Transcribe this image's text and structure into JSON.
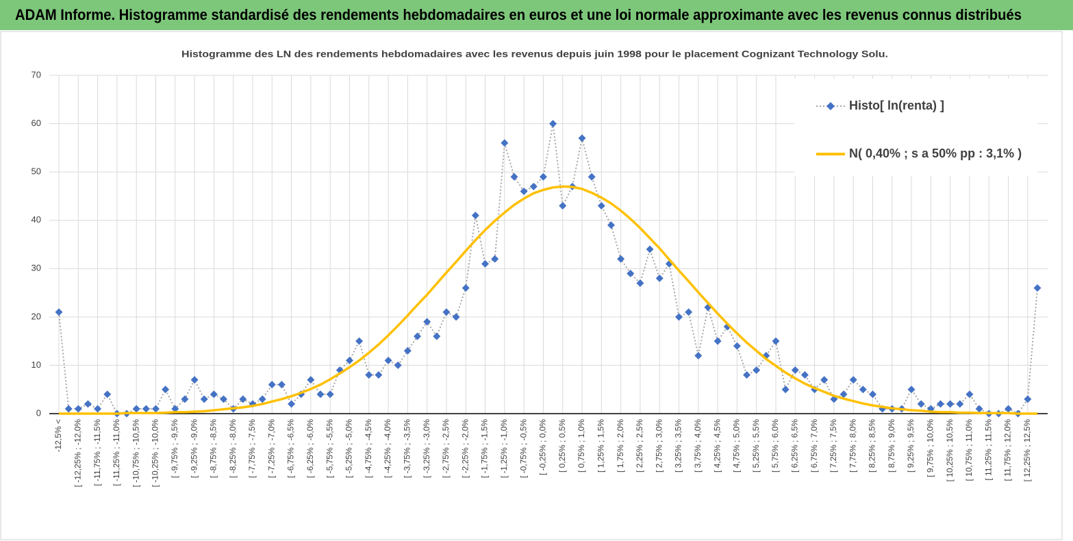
{
  "header": {
    "title": "ADAM Informe. Histogramme standardisé des rendements hebdomadaires en euros et une loi normale approximante avec les revenus connus distribués"
  },
  "chart_data": {
    "type": "line",
    "title": "Histogramme des LN des rendements hebdomadaires avec les revenus depuis juin 1998 pour le placement Cognizant Technology Solu.",
    "categories": [
      "-12,5% <",
      null,
      "[ -12,25% ; -12,0%",
      null,
      "[ -11,75% ; -11,5%",
      null,
      "[ -11,25% ; -11,0%",
      null,
      "[ -10,75% ; -10,5%",
      null,
      "[ -10,25% ; -10,0%",
      null,
      "[ -9,75% ; -9,5%",
      null,
      "[ -9,25% ; -9,0%",
      null,
      "[ -8,75% ; -8,5%",
      null,
      "[ -8,25% ; -8,0%",
      null,
      "[ -7,75% ; -7,5%",
      null,
      "[ -7,25% ; -7,0%",
      null,
      "[ -6,75% ; -6,5%",
      null,
      "[ -6,25% ; -6,0%",
      null,
      "[ -5,75% ; -5,5%",
      null,
      "[ -5,25% ; -5,0%",
      null,
      "[ -4,75% ; -4,5%",
      null,
      "[ -4,25% ; -4,0%",
      null,
      "[ -3,75% ; -3,5%",
      null,
      "[ -3,25% ; -3,0%",
      null,
      "[ -2,75% ; -2,5%",
      null,
      "[ -2,25% ; -2,0%",
      null,
      "[ -1,75% ; -1,5%",
      null,
      "[ -1,25% ; -1,0%",
      null,
      "[ -0,75% ; -0,5%",
      null,
      "[ -0,25% ; 0,0%",
      null,
      "[ 0,25% ; 0,5%",
      null,
      "[ 0,75% ; 1,0%",
      null,
      "[ 1,25% ; 1,5%",
      null,
      "[ 1,75% ; 2,0%",
      null,
      "[ 2,25% ; 2,5%",
      null,
      "[ 2,75% ; 3,0%",
      null,
      "[ 3,25% ; 3,5%",
      null,
      "[ 3,75% ; 4,0%",
      null,
      "[ 4,25% ; 4,5%",
      null,
      "[ 4,75% ; 5,0%",
      null,
      "[ 5,25% ; 5,5%",
      null,
      "[ 5,75% ; 6,0%",
      null,
      "[ 6,25% ; 6,5%",
      null,
      "[ 6,75% ; 7,0%",
      null,
      "[ 7,25% ; 7,5%",
      null,
      "[ 7,75% ; 8,0%",
      null,
      "[ 8,25% ; 8,5%",
      null,
      "[ 8,75% ; 9,0%",
      null,
      "[ 9,25% ; 9,5%",
      null,
      "[ 9,75% ; 10,0%",
      null,
      "[ 10,25% ; 10,5%",
      null,
      "[ 10,75% ; 11,0%",
      null,
      "[ 11,25% ; 11,5%",
      null,
      "[ 11,75% ; 12,0%",
      null,
      "[ 12,25% ; 12,5%",
      null
    ],
    "series": [
      {
        "name": "Histo[ ln(renta) ]",
        "color": "#4472c4",
        "line_color": "#a5a5a5",
        "values": [
          21,
          1,
          1,
          2,
          1,
          4,
          0,
          0,
          1,
          1,
          1,
          5,
          1,
          3,
          7,
          3,
          4,
          3,
          1,
          3,
          2,
          3,
          6,
          6,
          2,
          4,
          7,
          4,
          4,
          9,
          11,
          15,
          8,
          8,
          11,
          10,
          13,
          16,
          19,
          16,
          21,
          20,
          26,
          41,
          31,
          32,
          56,
          49,
          46,
          47,
          49,
          60,
          43,
          47,
          57,
          49,
          43,
          39,
          32,
          29,
          27,
          34,
          28,
          31,
          20,
          21,
          12,
          22,
          15,
          18,
          14,
          8,
          9,
          12,
          15,
          5,
          9,
          8,
          5,
          7,
          3,
          4,
          7,
          5,
          4,
          1,
          1,
          1,
          5,
          2,
          1,
          2,
          2,
          2,
          4,
          1,
          0,
          0,
          1,
          0,
          3,
          26
        ]
      },
      {
        "name": "N( 0,40% ; s a 50% pp : 3,1% )",
        "color": "#ffc000",
        "values": [
          0,
          0,
          0,
          0,
          0,
          0,
          0,
          0.1,
          0.1,
          0.1,
          0.1,
          0.2,
          0.3,
          0.3,
          0.4,
          0.5,
          0.7,
          0.9,
          1.1,
          1.3,
          1.6,
          2.0,
          2.5,
          3.0,
          3.6,
          4.3,
          5.1,
          6.0,
          7.1,
          8.3,
          9.6,
          11.0,
          12.6,
          14.3,
          16.2,
          18.2,
          20.3,
          22.5,
          24.6,
          26.9,
          29.2,
          31.4,
          33.7,
          35.9,
          38.0,
          39.9,
          41.6,
          43.2,
          44.5,
          45.6,
          46.3,
          46.8,
          47.0,
          46.9,
          46.5,
          45.7,
          44.7,
          43.5,
          42.0,
          40.3,
          38.4,
          36.3,
          34.2,
          31.9,
          29.6,
          27.4,
          25.1,
          22.9,
          20.7,
          18.6,
          16.6,
          14.7,
          13.0,
          11.3,
          9.9,
          8.5,
          7.3,
          6.2,
          5.3,
          4.5,
          3.7,
          3.1,
          2.6,
          2.1,
          1.7,
          1.4,
          1.1,
          0.9,
          0.7,
          0.6,
          0.4,
          0.3,
          0.3,
          0.2,
          0.2,
          0.1,
          0.1,
          0.1,
          0.1,
          0,
          0,
          0
        ]
      }
    ],
    "ylim": [
      0,
      70
    ],
    "yticks": [
      0,
      10,
      20,
      30,
      40,
      50,
      60,
      70
    ],
    "grid": true,
    "legend": "top-right"
  }
}
